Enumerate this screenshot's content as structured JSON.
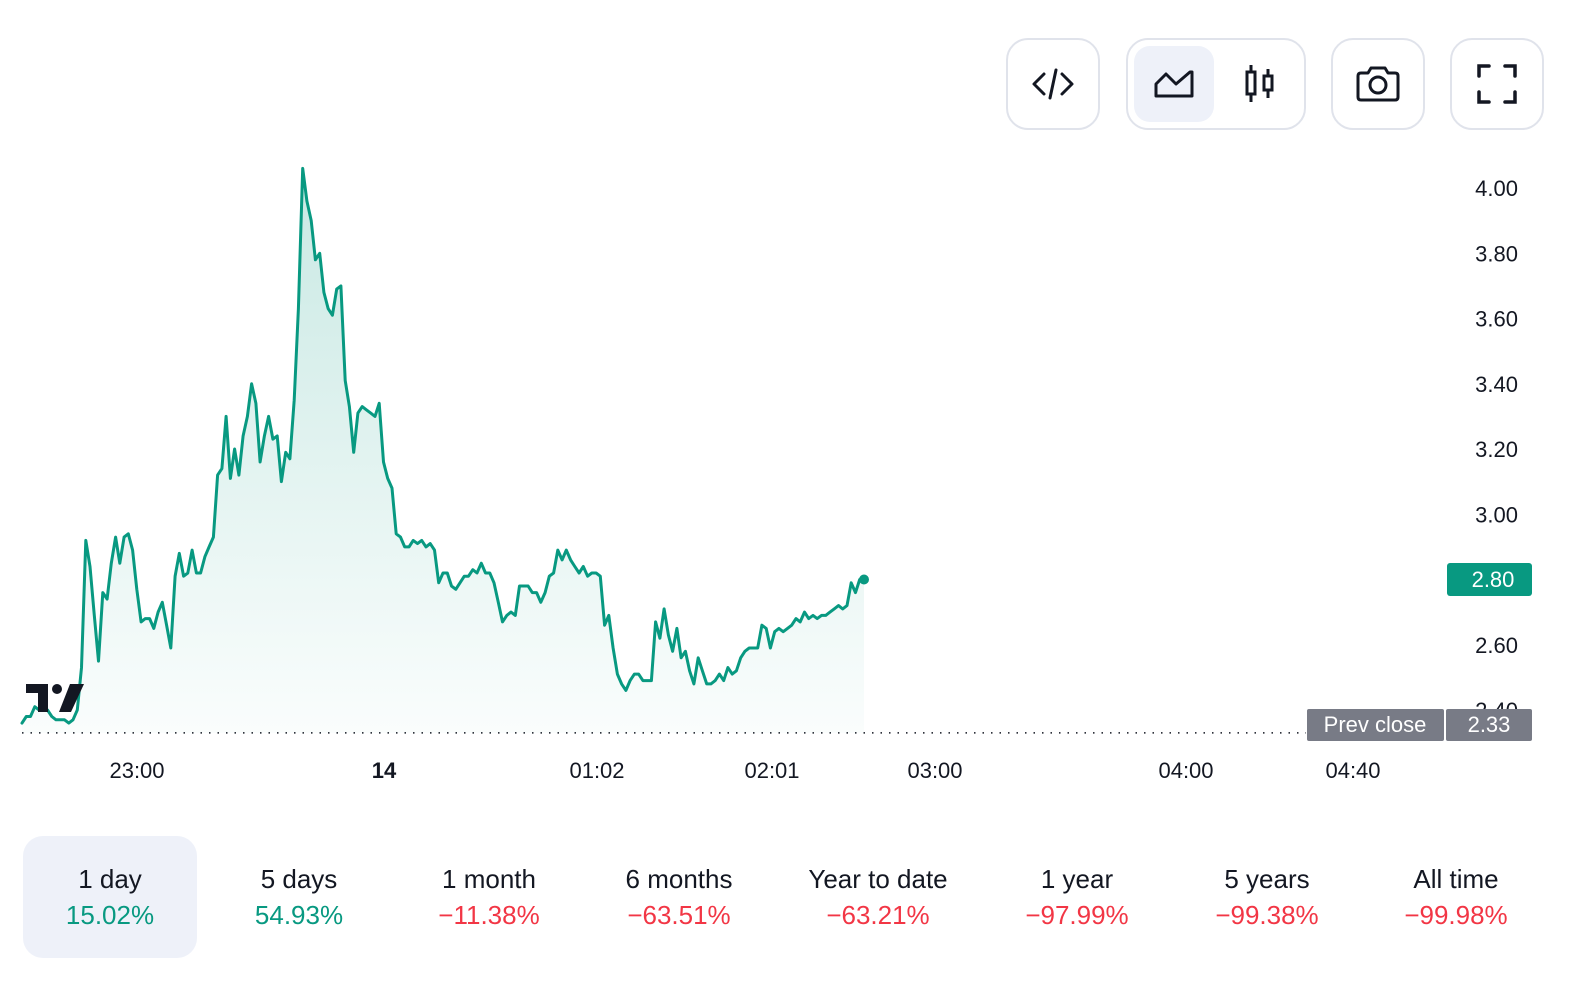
{
  "toolbar": {
    "embed_icon": "code-icon",
    "area_chart_icon": "area-chart-icon",
    "candles_icon": "candlestick-icon",
    "snapshot_icon": "camera-icon",
    "fullscreen_icon": "fullscreen-icon"
  },
  "colors": {
    "line": "#089981",
    "positive": "#089981",
    "negative": "#f23645",
    "prev_close_bg": "#787b86"
  },
  "chart_data": {
    "type": "area",
    "x_ticks": [
      "23:00",
      "14",
      "01:02",
      "02:01",
      "03:00",
      "04:00",
      "04:40"
    ],
    "y_ticks": [
      "4.00",
      "3.80",
      "3.60",
      "3.40",
      "3.20",
      "3.00",
      "2.60",
      "2.40"
    ],
    "ylim": [
      2.33,
      4.05
    ],
    "last_price": "2.80",
    "prev_close_label": "Prev close",
    "prev_close_value": "2.33",
    "values": [
      2.36,
      2.38,
      2.38,
      2.41,
      2.4,
      2.4,
      2.4,
      2.38,
      2.37,
      2.37,
      2.37,
      2.36,
      2.37,
      2.4,
      2.53,
      2.92,
      2.84,
      2.69,
      2.55,
      2.76,
      2.74,
      2.85,
      2.93,
      2.85,
      2.93,
      2.94,
      2.89,
      2.77,
      2.67,
      2.68,
      2.68,
      2.65,
      2.7,
      2.73,
      2.66,
      2.59,
      2.81,
      2.88,
      2.81,
      2.82,
      2.89,
      2.82,
      2.82,
      2.87,
      2.9,
      2.93,
      3.12,
      3.14,
      3.3,
      3.11,
      3.2,
      3.12,
      3.24,
      3.3,
      3.4,
      3.34,
      3.16,
      3.24,
      3.3,
      3.23,
      3.24,
      3.1,
      3.19,
      3.17,
      3.35,
      3.63,
      4.06,
      3.96,
      3.9,
      3.78,
      3.8,
      3.68,
      3.63,
      3.61,
      3.69,
      3.7,
      3.41,
      3.33,
      3.19,
      3.31,
      3.33,
      3.32,
      3.31,
      3.3,
      3.34,
      3.16,
      3.11,
      3.08,
      2.94,
      2.93,
      2.9,
      2.9,
      2.92,
      2.91,
      2.92,
      2.9,
      2.91,
      2.89,
      2.79,
      2.82,
      2.82,
      2.78,
      2.77,
      2.79,
      2.81,
      2.81,
      2.83,
      2.82,
      2.85,
      2.82,
      2.82,
      2.79,
      2.73,
      2.67,
      2.69,
      2.7,
      2.69,
      2.78,
      2.78,
      2.78,
      2.76,
      2.76,
      2.73,
      2.76,
      2.81,
      2.82,
      2.89,
      2.86,
      2.89,
      2.86,
      2.84,
      2.82,
      2.84,
      2.81,
      2.82,
      2.82,
      2.81,
      2.66,
      2.69,
      2.59,
      2.51,
      2.48,
      2.46,
      2.49,
      2.51,
      2.51,
      2.49,
      2.49,
      2.49,
      2.67,
      2.62,
      2.71,
      2.63,
      2.58,
      2.65,
      2.56,
      2.58,
      2.52,
      2.48,
      2.56,
      2.52,
      2.48,
      2.48,
      2.49,
      2.51,
      2.49,
      2.53,
      2.51,
      2.52,
      2.56,
      2.58,
      2.59,
      2.59,
      2.59,
      2.66,
      2.65,
      2.59,
      2.64,
      2.65,
      2.64,
      2.65,
      2.66,
      2.68,
      2.67,
      2.7,
      2.68,
      2.69,
      2.68,
      2.69,
      2.69,
      2.7,
      2.71,
      2.72,
      2.71,
      2.72,
      2.79,
      2.76,
      2.8,
      2.8
    ]
  },
  "periods": [
    {
      "label": "1 day",
      "value": "15.02%",
      "dir": "pos"
    },
    {
      "label": "5 days",
      "value": "54.93%",
      "dir": "pos"
    },
    {
      "label": "1 month",
      "value": "−11.38%",
      "dir": "neg"
    },
    {
      "label": "6 months",
      "value": "−63.51%",
      "dir": "neg"
    },
    {
      "label": "Year to date",
      "value": "−63.21%",
      "dir": "neg"
    },
    {
      "label": "1 year",
      "value": "−97.99%",
      "dir": "neg"
    },
    {
      "label": "5 years",
      "value": "−99.38%",
      "dir": "neg"
    },
    {
      "label": "All time",
      "value": "−99.98%",
      "dir": "neg"
    }
  ]
}
